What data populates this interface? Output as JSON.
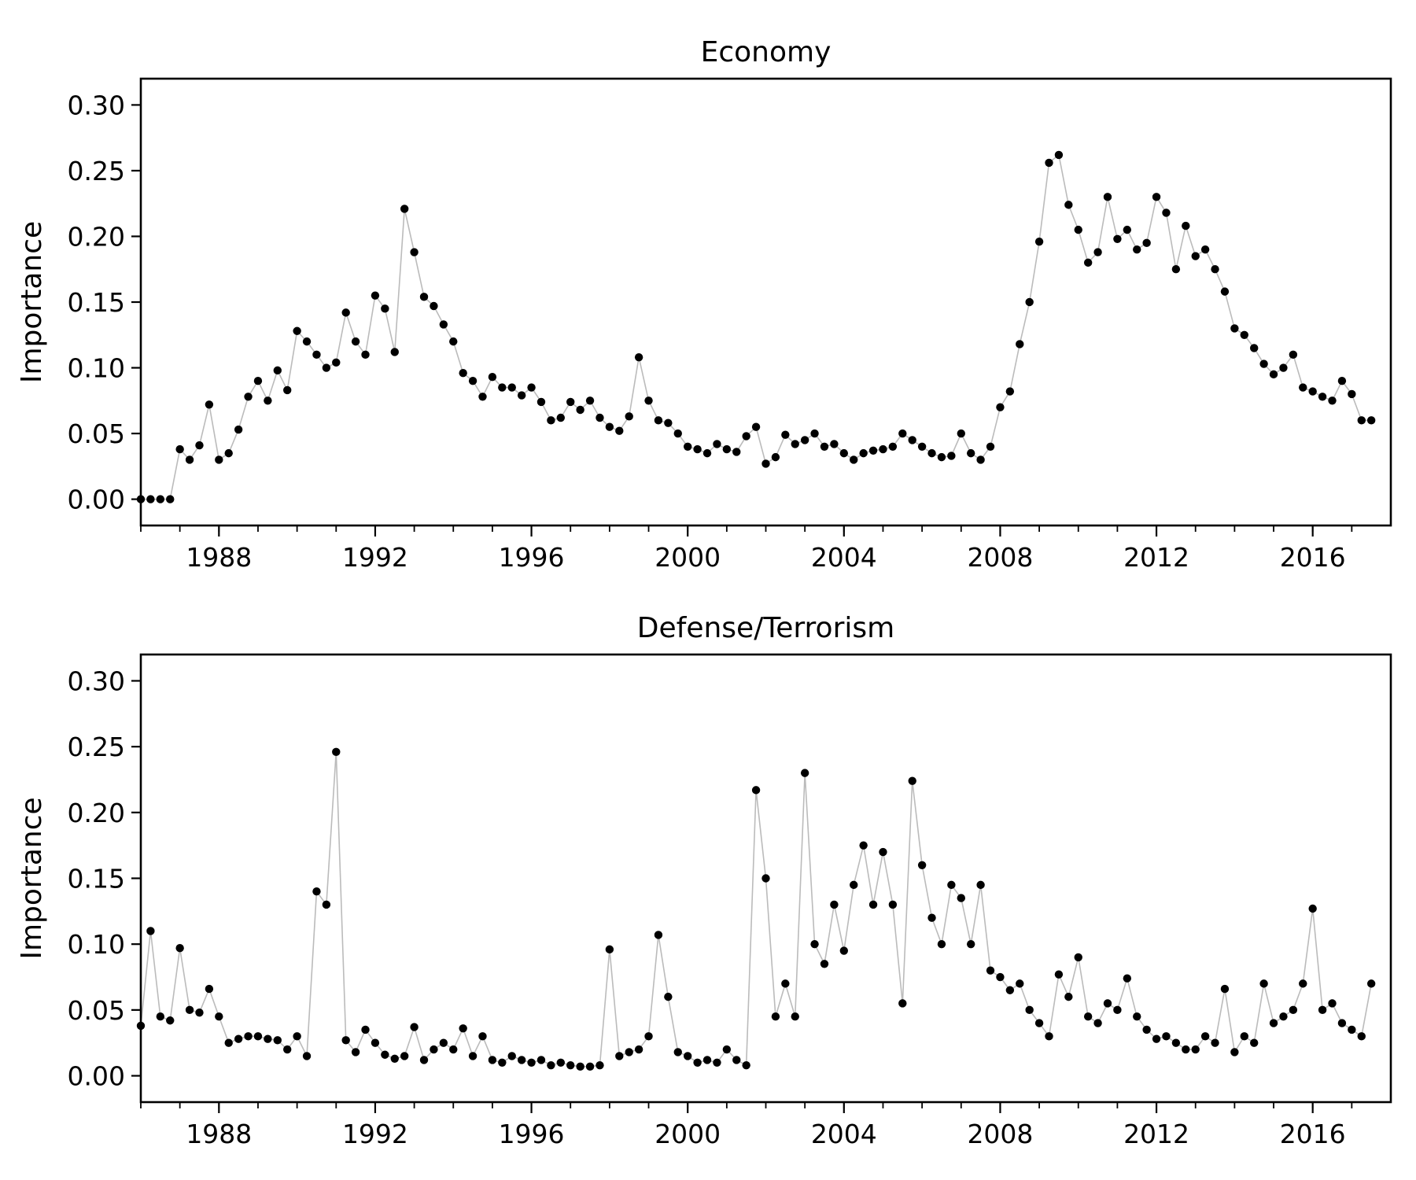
{
  "chart_data": [
    {
      "type": "line",
      "title": "Economy",
      "ylabel": "Importance",
      "x": [
        1986,
        1986.25,
        1986.5,
        1986.75,
        1987,
        1987.25,
        1987.5,
        1987.75,
        1988,
        1988.25,
        1988.5,
        1988.75,
        1989,
        1989.25,
        1989.5,
        1989.75,
        1990,
        1990.25,
        1990.5,
        1990.75,
        1991,
        1991.25,
        1991.5,
        1991.75,
        1992,
        1992.25,
        1992.5,
        1992.75,
        1993,
        1993.25,
        1993.5,
        1993.75,
        1994,
        1994.25,
        1994.5,
        1994.75,
        1995,
        1995.25,
        1995.5,
        1995.75,
        1996,
        1996.25,
        1996.5,
        1996.75,
        1997,
        1997.25,
        1997.5,
        1997.75,
        1998,
        1998.25,
        1998.5,
        1998.75,
        1999,
        1999.25,
        1999.5,
        1999.75,
        2000,
        2000.25,
        2000.5,
        2000.75,
        2001,
        2001.25,
        2001.5,
        2001.75,
        2002,
        2002.25,
        2002.5,
        2002.75,
        2003,
        2003.25,
        2003.5,
        2003.75,
        2004,
        2004.25,
        2004.5,
        2004.75,
        2005,
        2005.25,
        2005.5,
        2005.75,
        2006,
        2006.25,
        2006.5,
        2006.75,
        2007,
        2007.25,
        2007.5,
        2007.75,
        2008,
        2008.25,
        2008.5,
        2008.75,
        2009,
        2009.25,
        2009.5,
        2009.75,
        2010,
        2010.25,
        2010.5,
        2010.75,
        2011,
        2011.25,
        2011.5,
        2011.75,
        2012,
        2012.25,
        2012.5,
        2012.75,
        2013,
        2013.25,
        2013.5,
        2013.75,
        2014,
        2014.25,
        2014.5,
        2014.75,
        2015,
        2015.25,
        2015.5,
        2015.75,
        2016,
        2016.25,
        2016.5,
        2016.75,
        2017,
        2017.25,
        2017.5
      ],
      "values": [
        0,
        0,
        0,
        0,
        0.038,
        0.03,
        0.041,
        0.072,
        0.03,
        0.035,
        0.053,
        0.078,
        0.09,
        0.075,
        0.098,
        0.083,
        0.128,
        0.12,
        0.11,
        0.1,
        0.104,
        0.142,
        0.12,
        0.11,
        0.155,
        0.145,
        0.112,
        0.221,
        0.188,
        0.154,
        0.147,
        0.133,
        0.12,
        0.096,
        0.09,
        0.078,
        0.093,
        0.085,
        0.085,
        0.079,
        0.085,
        0.074,
        0.06,
        0.062,
        0.074,
        0.068,
        0.075,
        0.062,
        0.055,
        0.052,
        0.063,
        0.108,
        0.075,
        0.06,
        0.058,
        0.05,
        0.04,
        0.038,
        0.035,
        0.042,
        0.038,
        0.036,
        0.048,
        0.055,
        0.027,
        0.032,
        0.049,
        0.042,
        0.045,
        0.05,
        0.04,
        0.042,
        0.035,
        0.03,
        0.035,
        0.037,
        0.038,
        0.04,
        0.05,
        0.045,
        0.04,
        0.035,
        0.032,
        0.033,
        0.05,
        0.035,
        0.03,
        0.04,
        0.07,
        0.082,
        0.118,
        0.15,
        0.196,
        0.256,
        0.262,
        0.224,
        0.205,
        0.18,
        0.188,
        0.23,
        0.198,
        0.205,
        0.19,
        0.195,
        0.23,
        0.218,
        0.175,
        0.208,
        0.185,
        0.19,
        0.175,
        0.158,
        0.13,
        0.125,
        0.115,
        0.103,
        0.095,
        0.1,
        0.11,
        0.085,
        0.082,
        0.078,
        0.075,
        0.09,
        0.08,
        0.06,
        0.06
      ],
      "color": "#000000",
      "line_color": "#bbbbbb",
      "xlim": [
        1986,
        2018
      ],
      "ylim": [
        -0.02,
        0.32
      ],
      "xticks": [
        1988,
        1992,
        1996,
        2000,
        2004,
        2008,
        2012,
        2016
      ],
      "xminorticks": [
        1986,
        1987,
        1988,
        1989,
        1990,
        1991,
        1992,
        1993,
        1994,
        1995,
        1996,
        1997,
        1998,
        1999,
        2000,
        2001,
        2002,
        2003,
        2004,
        2005,
        2006,
        2007,
        2008,
        2009,
        2010,
        2011,
        2012,
        2013,
        2014,
        2015,
        2016,
        2017
      ],
      "yticks": [
        {
          "value": 0,
          "label": "0.00"
        },
        0.05,
        {
          "value": 0.1,
          "label": "0.10"
        },
        0.15,
        {
          "value": 0.2,
          "label": "0.20"
        },
        0.25,
        {
          "value": 0.3,
          "label": "0.30"
        }
      ]
    },
    {
      "type": "line",
      "title": "Defense/Terrorism",
      "ylabel": "Importance",
      "x": [
        1986,
        1986.25,
        1986.5,
        1986.75,
        1987,
        1987.25,
        1987.5,
        1987.75,
        1988,
        1988.25,
        1988.5,
        1988.75,
        1989,
        1989.25,
        1989.5,
        1989.75,
        1990,
        1990.25,
        1990.5,
        1990.75,
        1991,
        1991.25,
        1991.5,
        1991.75,
        1992,
        1992.25,
        1992.5,
        1992.75,
        1993,
        1993.25,
        1993.5,
        1993.75,
        1994,
        1994.25,
        1994.5,
        1994.75,
        1995,
        1995.25,
        1995.5,
        1995.75,
        1996,
        1996.25,
        1996.5,
        1996.75,
        1997,
        1997.25,
        1997.5,
        1997.75,
        1998,
        1998.25,
        1998.5,
        1998.75,
        1999,
        1999.25,
        1999.5,
        1999.75,
        2000,
        2000.25,
        2000.5,
        2000.75,
        2001,
        2001.25,
        2001.5,
        2001.75,
        2002,
        2002.25,
        2002.5,
        2002.75,
        2003,
        2003.25,
        2003.5,
        2003.75,
        2004,
        2004.25,
        2004.5,
        2004.75,
        2005,
        2005.25,
        2005.5,
        2005.75,
        2006,
        2006.25,
        2006.5,
        2006.75,
        2007,
        2007.25,
        2007.5,
        2007.75,
        2008,
        2008.25,
        2008.5,
        2008.75,
        2009,
        2009.25,
        2009.5,
        2009.75,
        2010,
        2010.25,
        2010.5,
        2010.75,
        2011,
        2011.25,
        2011.5,
        2011.75,
        2012,
        2012.25,
        2012.5,
        2012.75,
        2013,
        2013.25,
        2013.5,
        2013.75,
        2014,
        2014.25,
        2014.5,
        2014.75,
        2015,
        2015.25,
        2015.5,
        2015.75,
        2016,
        2016.25,
        2016.5,
        2016.75,
        2017,
        2017.25,
        2017.5
      ],
      "values": [
        0.038,
        0.11,
        0.045,
        0.042,
        0.097,
        0.05,
        0.048,
        0.066,
        0.045,
        0.025,
        0.028,
        0.03,
        0.03,
        0.028,
        0.027,
        0.02,
        0.03,
        0.015,
        0.14,
        0.13,
        0.246,
        0.027,
        0.018,
        0.035,
        0.025,
        0.016,
        0.013,
        0.015,
        0.037,
        0.012,
        0.02,
        0.025,
        0.02,
        0.036,
        0.015,
        0.03,
        0.012,
        0.01,
        0.015,
        0.012,
        0.01,
        0.012,
        0.008,
        0.01,
        0.008,
        0.007,
        0.007,
        0.008,
        0.096,
        0.015,
        0.018,
        0.02,
        0.03,
        0.107,
        0.06,
        0.018,
        0.015,
        0.01,
        0.012,
        0.01,
        0.02,
        0.012,
        0.008,
        0.217,
        0.15,
        0.045,
        0.07,
        0.045,
        0.23,
        0.1,
        0.085,
        0.13,
        0.095,
        0.145,
        0.175,
        0.13,
        0.17,
        0.13,
        0.055,
        0.224,
        0.16,
        0.12,
        0.1,
        0.145,
        0.135,
        0.1,
        0.145,
        0.08,
        0.075,
        0.065,
        0.07,
        0.05,
        0.04,
        0.03,
        0.077,
        0.06,
        0.09,
        0.045,
        0.04,
        0.055,
        0.05,
        0.074,
        0.045,
        0.035,
        0.028,
        0.03,
        0.025,
        0.02,
        0.02,
        0.03,
        0.025,
        0.066,
        0.018,
        0.03,
        0.025,
        0.07,
        0.04,
        0.045,
        0.05,
        0.07,
        0.127,
        0.05,
        0.055,
        0.04,
        0.035,
        0.03,
        0.07
      ],
      "color": "#000000",
      "line_color": "#bbbbbb",
      "xlim": [
        1986,
        2018
      ],
      "ylim": [
        -0.02,
        0.32
      ],
      "xticks": [
        1988,
        1992,
        1996,
        2000,
        2004,
        2008,
        2012,
        2016
      ],
      "xminorticks": [
        1986,
        1987,
        1988,
        1989,
        1990,
        1991,
        1992,
        1993,
        1994,
        1995,
        1996,
        1997,
        1998,
        1999,
        2000,
        2001,
        2002,
        2003,
        2004,
        2005,
        2006,
        2007,
        2008,
        2009,
        2010,
        2011,
        2012,
        2013,
        2014,
        2015,
        2016,
        2017
      ],
      "yticks": [
        {
          "value": 0,
          "label": "0.00"
        },
        0.05,
        {
          "value": 0.1,
          "label": "0.10"
        },
        0.15,
        {
          "value": 0.2,
          "label": "0.20"
        },
        0.25,
        {
          "value": 0.3,
          "label": "0.30"
        }
      ]
    }
  ]
}
